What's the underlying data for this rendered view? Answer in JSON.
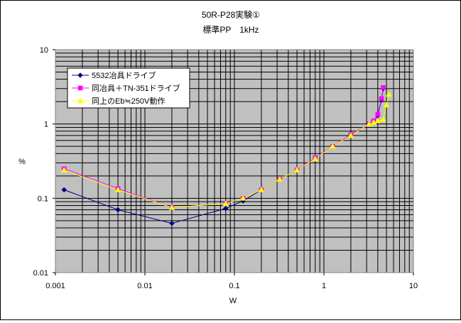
{
  "chart_data": {
    "type": "line",
    "title": "50R-P28実験①",
    "subtitle": "標準PP　1kHz",
    "xlabel": "W",
    "ylabel": "%",
    "x_scale": "log",
    "y_scale": "log",
    "xlim": [
      0.001,
      10
    ],
    "ylim": [
      0.01,
      10
    ],
    "x_ticks": [
      "0.001",
      "0.01",
      "0.1",
      "1",
      "10"
    ],
    "y_ticks": [
      "10",
      "1",
      "0.1",
      "0.01"
    ],
    "grid": true,
    "legend_position": "top-left",
    "series": [
      {
        "name": "5532冶具ドライブ",
        "color": "#000080",
        "marker": "diamond",
        "points": [
          [
            0.00125,
            0.13
          ],
          [
            0.005,
            0.07
          ],
          [
            0.02,
            0.046
          ],
          [
            0.08,
            0.073
          ],
          [
            0.125,
            0.092
          ],
          [
            0.2,
            0.13
          ],
          [
            0.32,
            0.18
          ],
          [
            0.5,
            0.24
          ],
          [
            0.8,
            0.35
          ],
          [
            1.25,
            0.5
          ],
          [
            2.0,
            0.72
          ],
          [
            3.2,
            1.0
          ],
          [
            3.6,
            1.1
          ],
          [
            4.0,
            1.3
          ],
          [
            4.4,
            2.1
          ],
          [
            4.6,
            3.0
          ]
        ]
      },
      {
        "name": "同冶具＋TN-351ドライブ",
        "color": "#ff00ff",
        "marker": "square",
        "points": [
          [
            0.00125,
            0.25
          ],
          [
            0.005,
            0.135
          ],
          [
            0.02,
            0.075
          ],
          [
            0.08,
            0.085
          ],
          [
            0.125,
            0.1
          ],
          [
            0.2,
            0.13
          ],
          [
            0.32,
            0.18
          ],
          [
            0.5,
            0.24
          ],
          [
            0.8,
            0.35
          ],
          [
            1.25,
            0.5
          ],
          [
            2.0,
            0.72
          ],
          [
            3.2,
            1.0
          ],
          [
            3.6,
            1.1
          ],
          [
            4.0,
            1.35
          ],
          [
            4.4,
            2.2
          ],
          [
            4.6,
            3.1
          ]
        ]
      },
      {
        "name": "同上のEb≒250V動作",
        "color": "#ffff00",
        "marker": "triangle",
        "points": [
          [
            0.00125,
            0.24
          ],
          [
            0.005,
            0.13
          ],
          [
            0.02,
            0.075
          ],
          [
            0.08,
            0.085
          ],
          [
            0.125,
            0.1
          ],
          [
            0.2,
            0.13
          ],
          [
            0.32,
            0.18
          ],
          [
            0.5,
            0.24
          ],
          [
            0.8,
            0.34
          ],
          [
            1.25,
            0.5
          ],
          [
            2.0,
            0.7
          ],
          [
            3.2,
            1.0
          ],
          [
            3.6,
            1.05
          ],
          [
            4.0,
            1.1
          ],
          [
            4.6,
            1.15
          ],
          [
            5.0,
            1.8
          ],
          [
            5.3,
            2.5
          ]
        ]
      }
    ]
  }
}
